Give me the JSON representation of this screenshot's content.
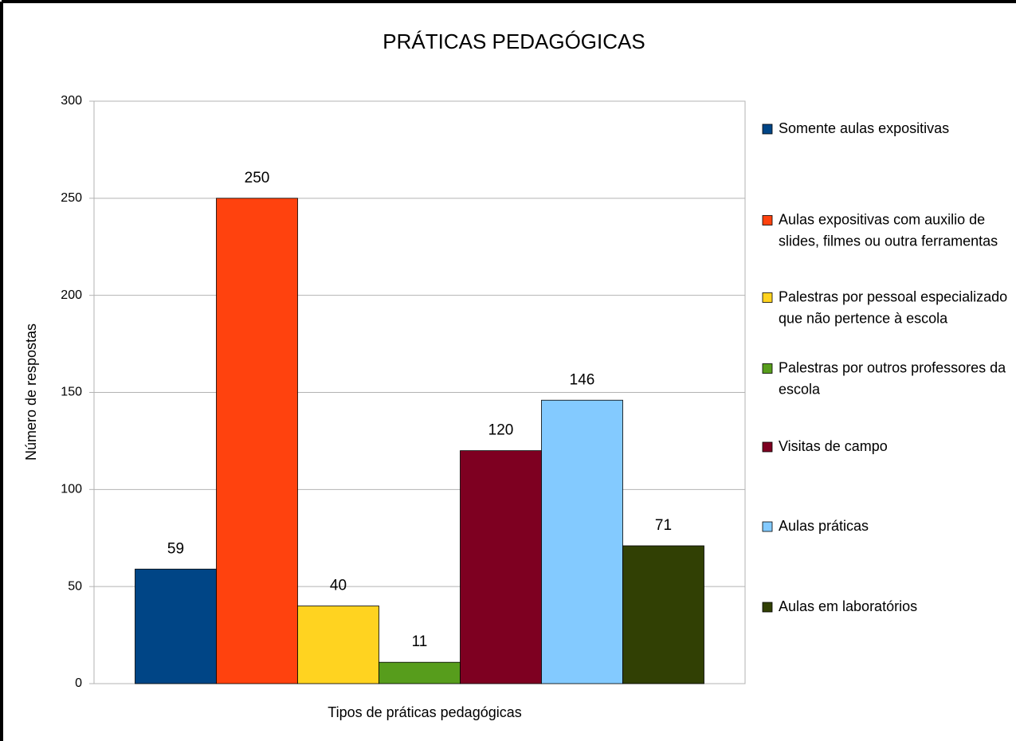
{
  "chart_data": {
    "type": "bar",
    "title": "PRÁTICAS PEDAGÓGICAS",
    "x_label": "Tipos de práticas pedagógicas",
    "y_label": "Número de respostas",
    "categories": [
      null
    ],
    "series": [
      {
        "name": "Somente aulas expositivas",
        "color": "#004586",
        "values": [
          59
        ]
      },
      {
        "name": "Aulas expositivas com auxilio de slides, filmes ou outra ferramentas",
        "color": "#ff420e",
        "values": [
          250
        ]
      },
      {
        "name": "Palestras por pessoal especializado que não pertence à escola",
        "color": "#ffd320",
        "values": [
          40
        ]
      },
      {
        "name": "Palestras por outros professores da escola",
        "color": "#579d1c",
        "values": [
          11
        ]
      },
      {
        "name": "Visitas de campo",
        "color": "#7e0021",
        "values": [
          120
        ]
      },
      {
        "name": "Aulas práticas",
        "color": "#83caff",
        "values": [
          146
        ]
      },
      {
        "name": "Aulas em laboratórios",
        "color": "#314004",
        "values": [
          71
        ]
      }
    ],
    "ylim": [
      0,
      300
    ],
    "yticks": [
      0,
      50,
      100,
      150,
      200,
      250,
      300
    ],
    "grid": true,
    "legend": "right"
  }
}
